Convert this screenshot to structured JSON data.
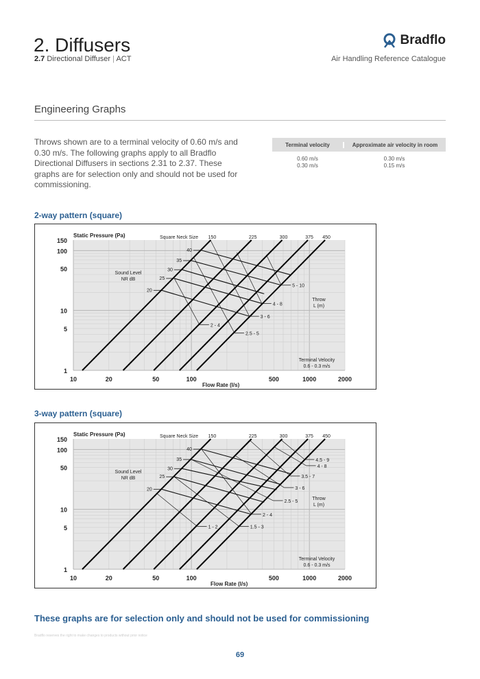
{
  "header": {
    "title": "2. Diffusers",
    "section_number": "2.7",
    "section_name": "Directional Diffuser",
    "separator": "|",
    "product": "ACT",
    "brand": "Bradflo",
    "catalogue": "Air Handling Reference Catalogue",
    "brand_color": "#2b5f91"
  },
  "section_title": "Engineering Graphs",
  "intro": "Throws shown are to a terminal velocity of 0.60 m/s and 0.30 m/s. The following graphs apply to all Bradflo Directional Diffusers in sections 2.31 to 2.37. These graphs are for selection only and should not be used for commissioning.",
  "velocity_table": {
    "headers": [
      "Terminal velocity",
      "Approximate air velocity in room"
    ],
    "rows": [
      [
        "0.60 m/s",
        "0.30 m/s"
      ],
      [
        "0.30 m/s",
        "0.15 m/s"
      ]
    ]
  },
  "graph_titles": [
    "2-way pattern (square)",
    "3-way pattern (square)"
  ],
  "chart_data": [
    {
      "type": "line",
      "xscale": "log",
      "yscale": "log",
      "xlim": [
        10,
        2000
      ],
      "ylim": [
        1,
        150
      ],
      "ylabel": "Static Pressure (Pa)",
      "xlabel": "Flow Rate (l/s)",
      "xticks": [
        "10",
        "20",
        "50",
        "100",
        "500",
        "1000",
        "2000"
      ],
      "yticks": [
        "1",
        "5",
        "10",
        "50",
        "100",
        "150"
      ],
      "neck_title": "Square Neck Size",
      "nr_title": [
        "Sound Level",
        "NR  dB"
      ],
      "throw_title": [
        "Throw",
        "L  (m)"
      ],
      "tv_title": [
        "Terminal Velocity",
        "0.6 - 0.3 m/s"
      ],
      "necks": [
        {
          "label": "150",
          "points": [
            [
              11.9,
              1
            ],
            [
              146,
              150
            ]
          ]
        },
        {
          "label": "225",
          "points": [
            [
              26.4,
              1
            ],
            [
              323,
              150
            ]
          ]
        },
        {
          "label": "300",
          "points": [
            [
              48,
              1
            ],
            [
              588,
              150
            ]
          ]
        },
        {
          "label": "375",
          "points": [
            [
              79.4,
              1
            ],
            [
              972,
              150
            ]
          ]
        },
        {
          "label": "450",
          "points": [
            [
              111,
              1
            ],
            [
              1359,
              150
            ]
          ]
        }
      ],
      "sound_levels": [
        {
          "label": "40",
          "points": [
            [
              122,
              101
            ],
            [
              705,
              39
            ]
          ]
        },
        {
          "label": "35",
          "points": [
            [
              100,
              68
            ],
            [
              577,
              26.5
            ]
          ]
        },
        {
          "label": "30",
          "points": [
            [
              83.8,
              47.9
            ],
            [
              414,
              19
            ]
          ]
        },
        {
          "label": "25",
          "points": [
            [
              71.7,
              34.3
            ],
            [
              395,
              13.1
            ]
          ]
        },
        {
          "label": "20",
          "points": [
            [
              56,
              21.7
            ],
            [
              310,
              8
            ]
          ]
        }
      ],
      "throws": [
        {
          "label": "5 - 10",
          "points": [
            [
              432,
              84.7
            ],
            [
              577,
              26.5
            ]
          ]
        },
        {
          "label": "4 - 8",
          "points": [
            [
              243,
              92.6
            ],
            [
              395,
              13.1
            ]
          ]
        },
        {
          "label": "3 - 6",
          "points": [
            [
              146,
              146
            ],
            [
              310,
              8
            ]
          ]
        },
        {
          "label": "2.5 - 5",
          "points": [
            [
              104.5,
              77.6
            ],
            [
              232,
              4.2
            ]
          ]
        },
        {
          "label": "2 - 4",
          "points": [
            [
              71.7,
              34.3
            ],
            [
              117,
              5.8
            ]
          ]
        }
      ]
    },
    {
      "type": "line",
      "xscale": "log",
      "yscale": "log",
      "xlim": [
        10,
        2000
      ],
      "ylim": [
        1,
        150
      ],
      "ylabel": "Static Pressure (Pa)",
      "xlabel": "Flow Rate (l/s)",
      "xticks": [
        "10",
        "20",
        "50",
        "100",
        "500",
        "1000",
        "2000"
      ],
      "yticks": [
        "1",
        "5",
        "10",
        "50",
        "100",
        "150"
      ],
      "neck_title": "Square Neck Size",
      "nr_title": [
        "Sound Level",
        "NR  dB"
      ],
      "throw_title": [
        "Throw",
        "L  (m)"
      ],
      "tv_title": [
        "Terminal Velocity",
        "0.6 - 0.3 m/s"
      ],
      "necks": [
        {
          "label": "150",
          "points": [
            [
              11.9,
              1
            ],
            [
              146,
              150
            ]
          ]
        },
        {
          "label": "225",
          "points": [
            [
              26.4,
              1
            ],
            [
              323,
              150
            ]
          ]
        },
        {
          "label": "300",
          "points": [
            [
              48,
              1
            ],
            [
              588,
              150
            ]
          ]
        },
        {
          "label": "375",
          "points": [
            [
              79.4,
              1
            ],
            [
              972,
              150
            ]
          ]
        },
        {
          "label": "450",
          "points": [
            [
              111,
              1
            ],
            [
              1359,
              150
            ]
          ]
        }
      ],
      "sound_levels": [
        {
          "label": "40",
          "points": [
            [
              122,
              101
            ],
            [
              705,
              39
            ]
          ]
        },
        {
          "label": "35",
          "points": [
            [
              100,
              68
            ],
            [
              577,
              26
            ]
          ]
        },
        {
          "label": "30",
          "points": [
            [
              83.8,
              47.9
            ],
            [
              528,
              21.3
            ]
          ]
        },
        {
          "label": "25",
          "points": [
            [
              71.7,
              35
            ],
            [
              414,
              13.2
            ]
          ]
        },
        {
          "label": "20",
          "points": [
            [
              56,
              21.7
            ],
            [
              324,
              8.25
            ]
          ]
        }
      ],
      "throws": [
        {
          "label": "4.5 - 9",
          "points": [
            [
              577,
              144
            ],
            [
              912,
              68
            ]
          ]
        },
        {
          "label": "4 - 8",
          "points": [
            [
              505,
              110
            ],
            [
              940,
              53.7
            ]
          ]
        },
        {
          "label": "3.5 - 7",
          "points": [
            [
              310,
              144
            ],
            [
              689,
              36.1
            ]
          ]
        },
        {
          "label": "3 - 6",
          "points": [
            [
              238,
              77.6
            ],
            [
              611,
              23.1
            ]
          ]
        },
        {
          "label": "2.5 - 5",
          "points": [
            [
              100,
              68
            ],
            [
              494,
              14
            ]
          ]
        },
        {
          "label": "2 - 4",
          "points": [
            [
              122,
              101
            ],
            [
              324,
              8.3
            ]
          ]
        },
        {
          "label": "1.5 - 3",
          "points": [
            [
              71.7,
              35
            ],
            [
              254,
              5.2
            ]
          ]
        },
        {
          "label": "1 - 2",
          "points": [
            [
              51.4,
              18.2
            ],
            [
              112,
              5.2
            ]
          ]
        }
      ]
    }
  ],
  "footer": {
    "note": "These graphs are for selection only and should not be used for commissioning",
    "fine_print": "Bradflo reserves the right to make changes to products without prior notice",
    "page_number": "69"
  }
}
